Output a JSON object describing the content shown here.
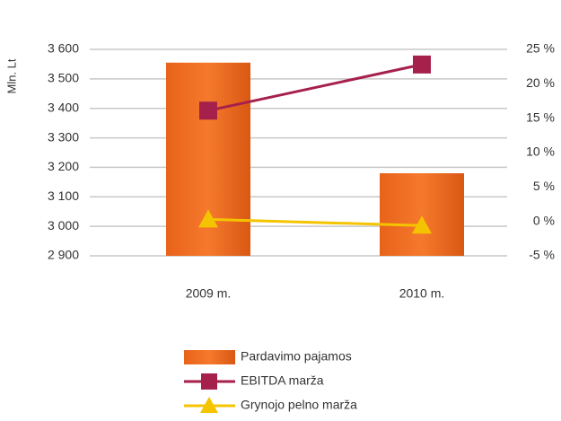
{
  "chart_data": {
    "type": "bar_line",
    "y_label": "Mln. Lt",
    "categories": [
      "2009 m.",
      "2010 m."
    ],
    "ylim": [
      2900,
      3600
    ],
    "yticks": [
      {
        "value": 2900,
        "label": "2 900"
      },
      {
        "value": 3000,
        "label": "3 000"
      },
      {
        "value": 3100,
        "label": "3 100"
      },
      {
        "value": 3200,
        "label": "3 200"
      },
      {
        "value": 3300,
        "label": "3 300"
      },
      {
        "value": 3400,
        "label": "3 400"
      },
      {
        "value": 3500,
        "label": "3 500"
      },
      {
        "value": 3600,
        "label": "3 600"
      }
    ],
    "y2lim": [
      -5,
      25
    ],
    "y2ticks": [
      {
        "value": -5,
        "label": "-5 %"
      },
      {
        "value": 0,
        "label": "0 %"
      },
      {
        "value": 5,
        "label": "5 %"
      },
      {
        "value": 10,
        "label": "10 %"
      },
      {
        "value": 15,
        "label": "15 %"
      },
      {
        "value": 20,
        "label": "20 %"
      },
      {
        "value": 25,
        "label": "25 %"
      }
    ],
    "grid": true,
    "series": [
      {
        "name": "Pardavimo pajamos",
        "type": "bar",
        "color": "#f07022",
        "values": [
          3555,
          3180
        ]
      },
      {
        "name": "EBITDA marža",
        "type": "line",
        "marker": "square",
        "axis": "y2",
        "color": "#a6204c",
        "values": [
          16.1,
          22.8
        ]
      },
      {
        "name": "Grynojo pelno marža",
        "type": "line",
        "marker": "triangle",
        "axis": "y2",
        "color": "#f5c400",
        "values": [
          0.3,
          -0.6
        ]
      }
    ]
  }
}
